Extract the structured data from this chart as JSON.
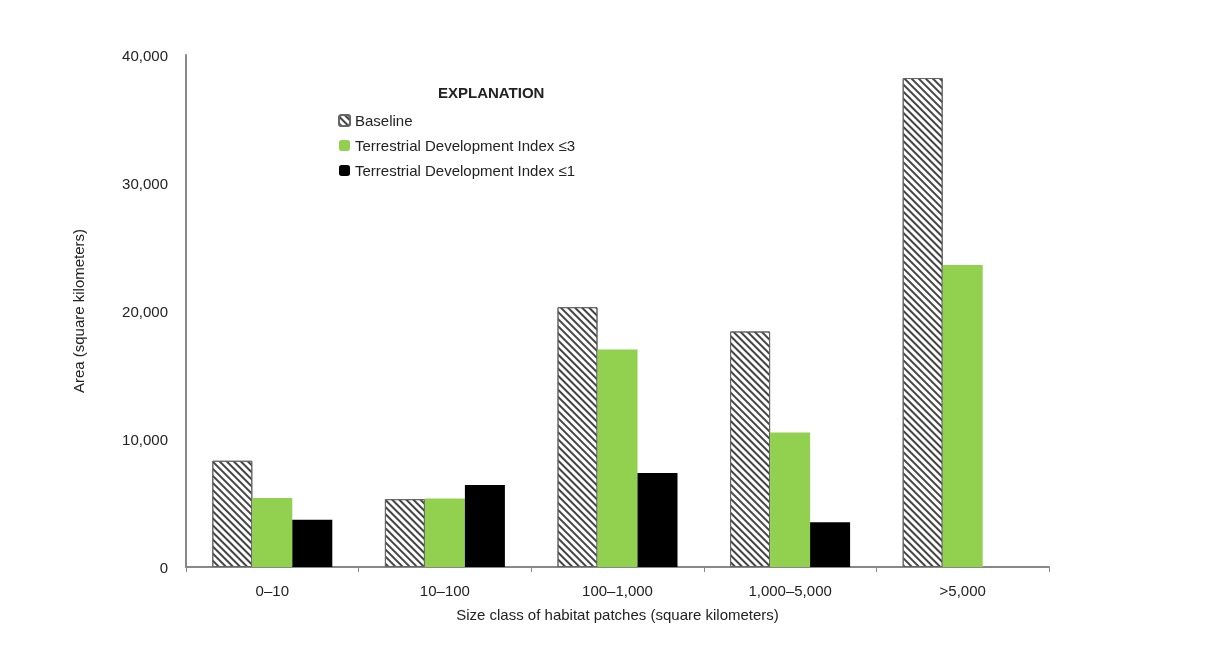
{
  "chart_data": {
    "type": "bar",
    "xlabel": "Size class of habitat patches (square kilometers)",
    "ylabel": "Area (square kilometers)",
    "legend_title": "EXPLANATION",
    "categories": [
      "0–10",
      "10–100",
      "100–1,000",
      "1,000–5,000",
      ">5,000"
    ],
    "series": [
      {
        "name": "Baseline",
        "color": "#ffffff",
        "values": [
          8300,
          5300,
          20300,
          18400,
          38200
        ]
      },
      {
        "name": "Terrestrial Development Index ≤3",
        "color": "#92d050",
        "values": [
          5400,
          5350,
          17000,
          10500,
          23600
        ]
      },
      {
        "name": "Terrestrial Development Index ≤1",
        "color": "#000000",
        "values": [
          3700,
          6400,
          7350,
          3500,
          null
        ]
      }
    ],
    "ylim": [
      0,
      40000
    ],
    "yticks": [
      0,
      {
        "value": 10000,
        "label": "10,000"
      },
      {
        "value": 20000,
        "label": "20,000"
      },
      {
        "value": 30000,
        "label": "30,000"
      },
      {
        "value": 40000,
        "label": "40,000"
      }
    ],
    "grid": false,
    "legend": "top left"
  }
}
